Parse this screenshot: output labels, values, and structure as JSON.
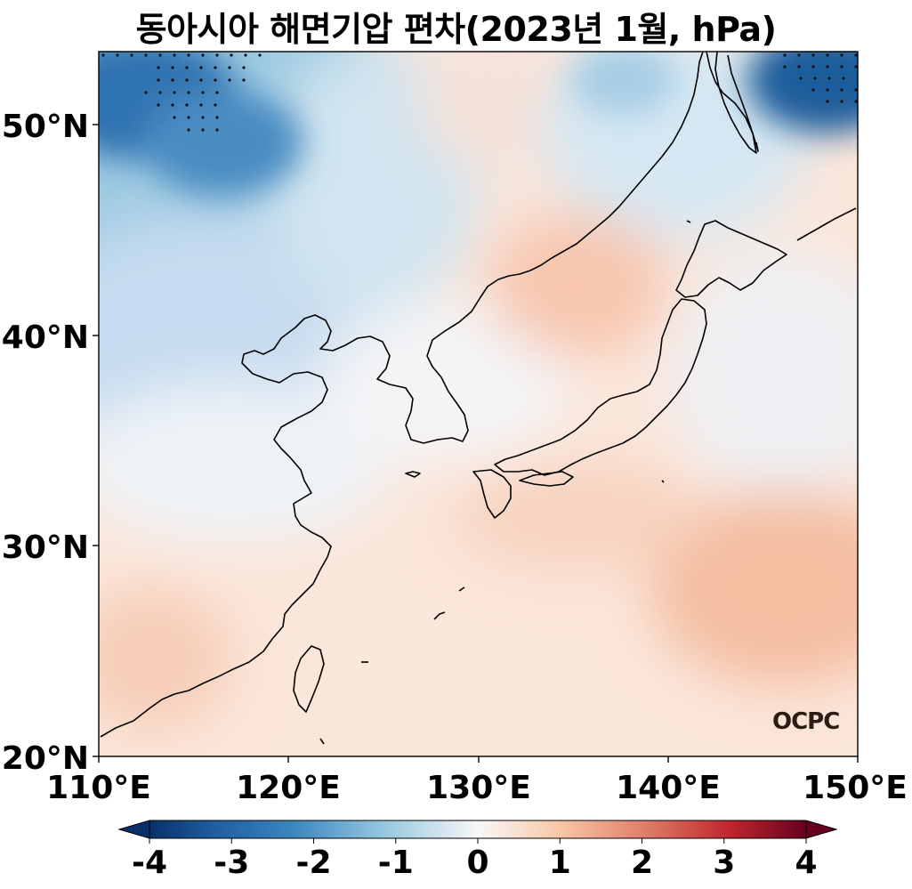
{
  "title": "동아시아 해면기압 편차(2023년 1월, hPa)",
  "map": {
    "region": "East Asia",
    "lon_range": [
      110,
      150
    ],
    "lat_range": [
      20,
      53.5
    ],
    "lat_ticks": [
      "20°N",
      "30°N",
      "40°N",
      "50°N"
    ],
    "lon_ticks": [
      "110°E",
      "120°E",
      "130°E",
      "140°E",
      "150°E"
    ],
    "field": "sea level pressure anomaly",
    "unit": "hPa",
    "colormap": "RdBu_r",
    "coastline_color": "#000000",
    "stipple": "significance dots over NW and NE corners"
  },
  "colorbar": {
    "min": -4,
    "max": 4,
    "tick_labels": [
      "-4",
      "-3",
      "-2",
      "-1",
      "0",
      "1",
      "2",
      "3",
      "4"
    ],
    "colors": [
      "#08306b",
      "#2166ac",
      "#4393c3",
      "#92c5de",
      "#f7f7f7",
      "#f4a582",
      "#d6604d",
      "#b2182b",
      "#67001f"
    ],
    "extend": "both"
  },
  "logo": "OCPC"
}
